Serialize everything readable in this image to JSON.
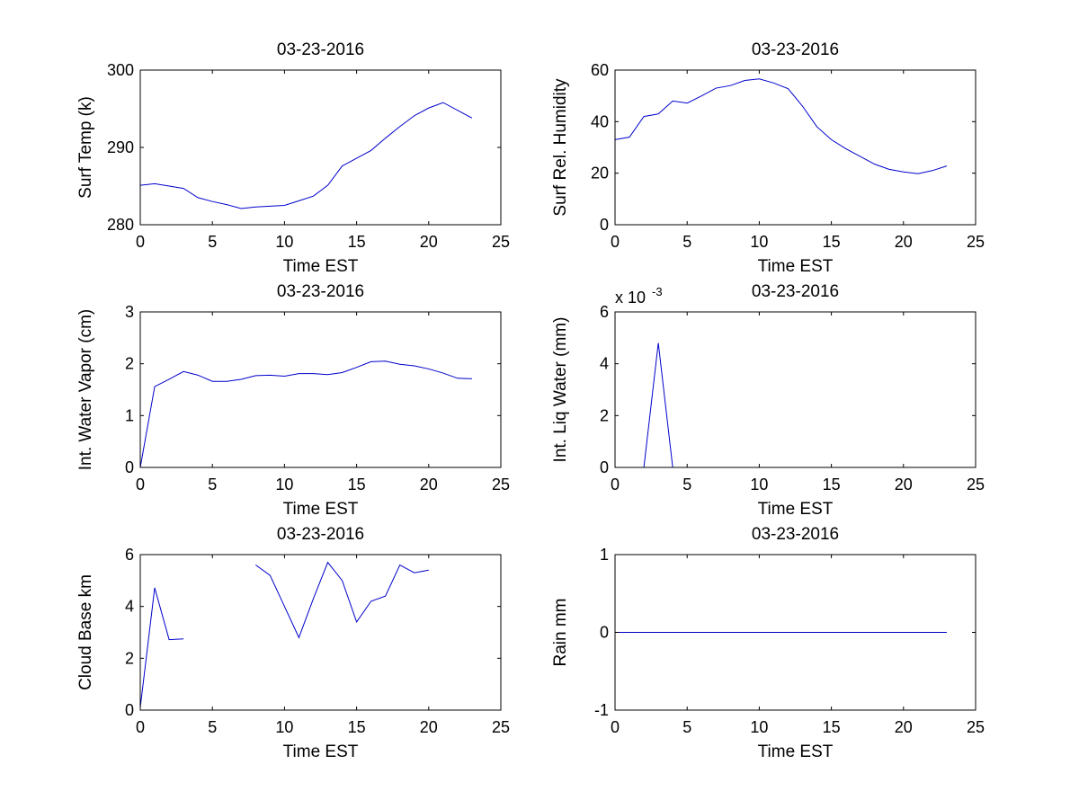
{
  "chart_data": [
    {
      "type": "line",
      "title": "03-23-2016",
      "xlabel": "Time EST",
      "ylabel": "Surf Temp (k)",
      "xlim": [
        0,
        25
      ],
      "ylim": [
        280,
        300
      ],
      "xticks": [
        0,
        5,
        10,
        15,
        20,
        25
      ],
      "yticks": [
        280,
        290,
        300
      ],
      "color": "#0000cc",
      "x": [
        0,
        1,
        2,
        3,
        4,
        5,
        6,
        7,
        8,
        9,
        10,
        11,
        12,
        13,
        14,
        15,
        16,
        17,
        18,
        19,
        20,
        21,
        22,
        23
      ],
      "y": [
        285.1,
        285.3,
        285.0,
        284.7,
        283.5,
        283.0,
        282.6,
        282.1,
        282.3,
        282.4,
        282.5,
        283.1,
        283.7,
        285.1,
        287.6,
        288.6,
        289.6,
        291.2,
        292.7,
        294.1,
        295.1,
        295.8,
        294.8,
        293.8
      ]
    },
    {
      "type": "line",
      "title": "03-23-2016",
      "xlabel": "Time EST",
      "ylabel": "Surf Rel. Humidity",
      "xlim": [
        0,
        25
      ],
      "ylim": [
        0,
        60
      ],
      "xticks": [
        0,
        5,
        10,
        15,
        20,
        25
      ],
      "yticks": [
        0,
        20,
        40,
        60
      ],
      "color": "#0000cc",
      "x": [
        0,
        1,
        2,
        3,
        4,
        5,
        6,
        7,
        8,
        9,
        10,
        11,
        12,
        13,
        14,
        15,
        16,
        17,
        18,
        19,
        20,
        21,
        22,
        23
      ],
      "y": [
        33.0,
        34.0,
        42.0,
        43.0,
        48.0,
        47.2,
        50.0,
        53.0,
        54.0,
        56.0,
        56.6,
        55.0,
        52.8,
        46.0,
        38.0,
        33.0,
        29.5,
        26.5,
        23.5,
        21.5,
        20.5,
        19.8,
        21.0,
        22.8
      ]
    },
    {
      "type": "line",
      "title": "03-23-2016",
      "xlabel": "Time EST",
      "ylabel": "Int. Water Vapor (cm)",
      "xlim": [
        0,
        25
      ],
      "ylim": [
        0,
        3
      ],
      "xticks": [
        0,
        5,
        10,
        15,
        20,
        25
      ],
      "yticks": [
        0,
        1,
        2,
        3
      ],
      "color": "#0000cc",
      "x": [
        0,
        1,
        2,
        3,
        4,
        5,
        6,
        7,
        8,
        9,
        10,
        11,
        12,
        13,
        14,
        15,
        16,
        17,
        18,
        19,
        20,
        21,
        22,
        23
      ],
      "y": [
        0.0,
        1.56,
        1.7,
        1.85,
        1.78,
        1.66,
        1.66,
        1.7,
        1.77,
        1.78,
        1.76,
        1.81,
        1.81,
        1.79,
        1.83,
        1.93,
        2.04,
        2.05,
        1.99,
        1.96,
        1.9,
        1.82,
        1.72,
        1.71
      ]
    },
    {
      "type": "line",
      "title": "03-23-2016",
      "xlabel": "Time EST",
      "ylabel": "Int. Liq Water (mm)",
      "xlim": [
        0,
        25
      ],
      "ylim": [
        0,
        6
      ],
      "xticks": [
        0,
        5,
        10,
        15,
        20,
        25
      ],
      "yticks": [
        0,
        2,
        4,
        6
      ],
      "y_exponent": {
        "base": "x 10",
        "power": "-3"
      },
      "color": "#0000cc",
      "x": [
        2,
        3,
        4
      ],
      "y": [
        0,
        4.8,
        0
      ]
    },
    {
      "type": "line",
      "title": "03-23-2016",
      "xlabel": "Time EST",
      "ylabel": "Cloud Base km",
      "xlim": [
        0,
        25
      ],
      "ylim": [
        0,
        6
      ],
      "xticks": [
        0,
        5,
        10,
        15,
        20,
        25
      ],
      "yticks": [
        0,
        2,
        4,
        6
      ],
      "color": "#0000cc",
      "segments": [
        {
          "x": [
            0,
            1,
            2,
            3
          ],
          "y": [
            0.1,
            4.72,
            2.72,
            2.75
          ]
        },
        {
          "x": [
            8,
            9,
            10,
            11,
            12,
            13,
            14,
            15,
            16,
            17,
            18,
            19,
            20
          ],
          "y": [
            5.6,
            5.2,
            4.0,
            2.8,
            4.3,
            5.7,
            5.0,
            3.4,
            4.2,
            4.4,
            5.6,
            5.3,
            5.4
          ]
        }
      ]
    },
    {
      "type": "line",
      "title": "03-23-2016",
      "xlabel": "Time EST",
      "ylabel": "Rain mm",
      "xlim": [
        0,
        25
      ],
      "ylim": [
        -1,
        1
      ],
      "xticks": [
        0,
        5,
        10,
        15,
        20,
        25
      ],
      "yticks": [
        -1,
        0,
        1
      ],
      "color": "#0000cc",
      "x": [
        0,
        1,
        2,
        3,
        4,
        5,
        6,
        7,
        8,
        9,
        10,
        11,
        12,
        13,
        14,
        15,
        16,
        17,
        18,
        19,
        20,
        21,
        22,
        23
      ],
      "y": [
        0,
        0,
        0,
        0,
        0,
        0,
        0,
        0,
        0,
        0,
        0,
        0,
        0,
        0,
        0,
        0,
        0,
        0,
        0,
        0,
        0,
        0,
        0,
        0
      ]
    }
  ]
}
